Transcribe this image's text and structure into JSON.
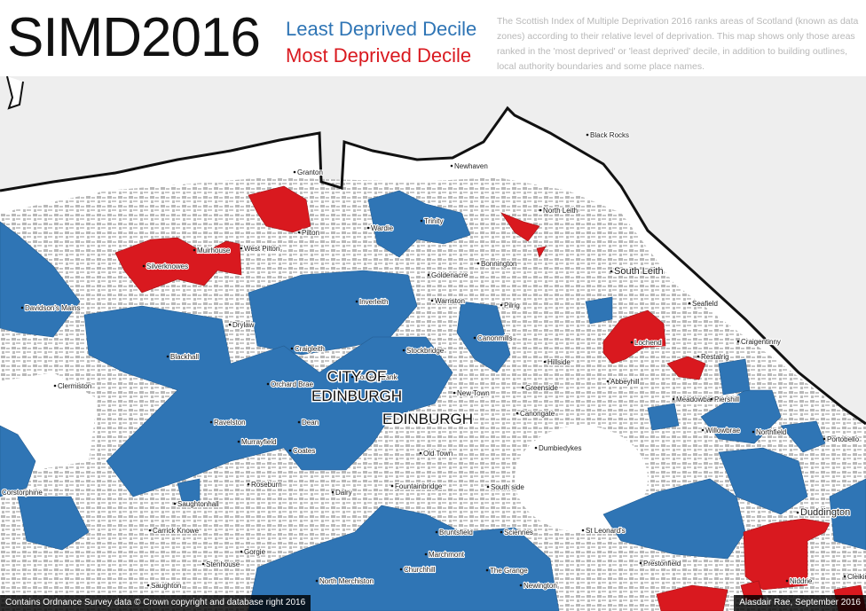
{
  "header": {
    "title": "SIMD2016",
    "legend": [
      "Least Deprived Decile",
      "Most  Deprived Decile"
    ],
    "description": "The Scottish Index of Multiple Deprivation 2016 ranks areas of Scotland (known as data zones) according to their relative level of deprivation. This map shows only those areas ranked in the 'most deprived' or 'least deprived' decile, in addition to building outlines, local authority boundaries and some place names."
  },
  "map": {
    "city_label": [
      "CITY OF",
      "EDINBURGH"
    ],
    "town_label": "EDINBURGH",
    "places": [
      "Black Rocks",
      "Granton",
      "Newhaven",
      "North Leith",
      "Trinity",
      "Wardie",
      "Pilton",
      "West Pilton",
      "Muirhouse",
      "Silverknowes",
      "Bonnington",
      "South Leith",
      "Goldenacre",
      "Warriston",
      "Inverleith",
      "Seafield",
      "Pilrig",
      "Davidson's Mains",
      "Drylaw",
      "Lochend",
      "Craigentinny",
      "Canonmills",
      "Craigleith",
      "Stockbridge",
      "Restalrig",
      "Blackhall",
      "Hillside",
      "Abbeyhill",
      "Comely Bank",
      "Orchard Brae",
      "Greenside",
      "Clermiston",
      "New Town",
      "Meadowbank",
      "Piershill",
      "Canongate",
      "Ravelston",
      "Dean",
      "Willowbrae",
      "Northfield",
      "Portobello",
      "Murrayfield",
      "Coates",
      "Dumbiedykes",
      "Old Town",
      "Roseburn",
      "Fountainbridge",
      "South side",
      "Dalry",
      "Corstorphine",
      "Saughtonhall",
      "Carrick Knowe",
      "St Leonard's",
      "Bruntsfield",
      "Sciennes",
      "Duddington",
      "Gorgie",
      "Marchmont",
      "Stenhouse",
      "Prestonfield",
      "Churchhill",
      "The Grange",
      "North Merchiston",
      "Newington",
      "Saughton",
      "Niddrie",
      "Cleikimin"
    ]
  },
  "footer": {
    "left": "Contains Ordnance Survey data © Crown copyright and database right 2016",
    "right": "Alasdair Rae, September 2016"
  }
}
